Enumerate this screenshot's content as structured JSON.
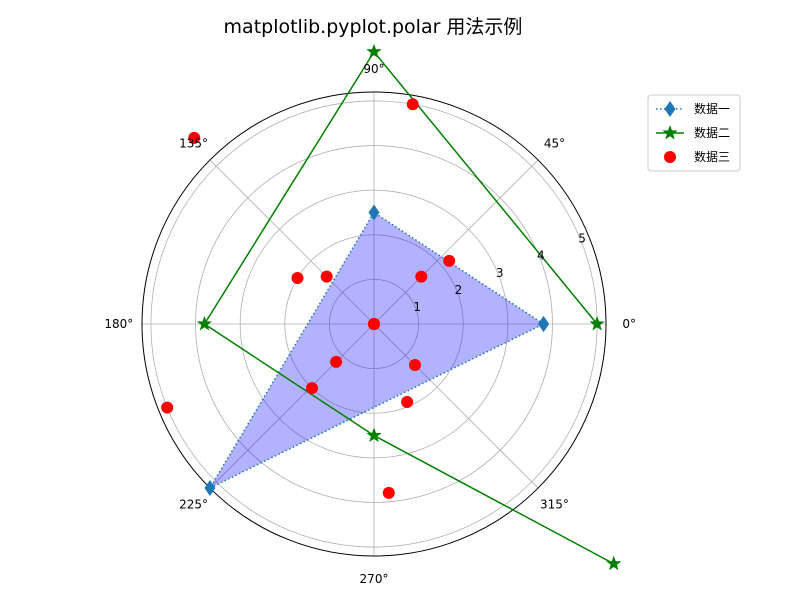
{
  "chart_data": {
    "type": "polar",
    "title": "matplotlib.pyplot.polar 用法示例",
    "theta_tick_labels": [
      "0°",
      "45°",
      "90°",
      "135°",
      "180°",
      "225°",
      "270°",
      "315°"
    ],
    "theta_ticks_deg": [
      0,
      45,
      90,
      135,
      180,
      225,
      270,
      315
    ],
    "r_tick_labels": [
      "1",
      "2",
      "3",
      "4",
      "5"
    ],
    "r_ticks": [
      1,
      2,
      3,
      4,
      5
    ],
    "rlim": [
      0,
      5.2
    ],
    "r_label_angle_deg": 22.5,
    "grid": true,
    "legend_position": "top-right",
    "series": [
      {
        "name": "数据一",
        "style": "dotted-line-diamond",
        "color": "#1f77b4",
        "fill": "#0000ff",
        "fill_alpha": 0.3,
        "theta_deg": [
          0,
          90,
          225,
          0
        ],
        "r": [
          3.8,
          2.5,
          5.2,
          3.8
        ]
      },
      {
        "name": "数据二",
        "style": "solid-line-star",
        "color": "#008000",
        "theta_deg": [
          0,
          90,
          180,
          270,
          315
        ],
        "r": [
          5.0,
          6.1,
          3.8,
          2.5,
          7.6
        ]
      },
      {
        "name": "数据三",
        "style": "scatter-circle",
        "color": "#ff0000",
        "theta_deg": [
          0,
          90,
          180,
          270,
          45,
          135,
          225,
          315,
          40,
          149,
          226,
          293,
          80,
          134,
          202,
          275
        ],
        "r": [
          0,
          0,
          0,
          0,
          1.5,
          1.5,
          1.2,
          1.3,
          2.2,
          2.0,
          2.0,
          1.9,
          5.0,
          5.8,
          5.0,
          3.8
        ]
      }
    ]
  }
}
